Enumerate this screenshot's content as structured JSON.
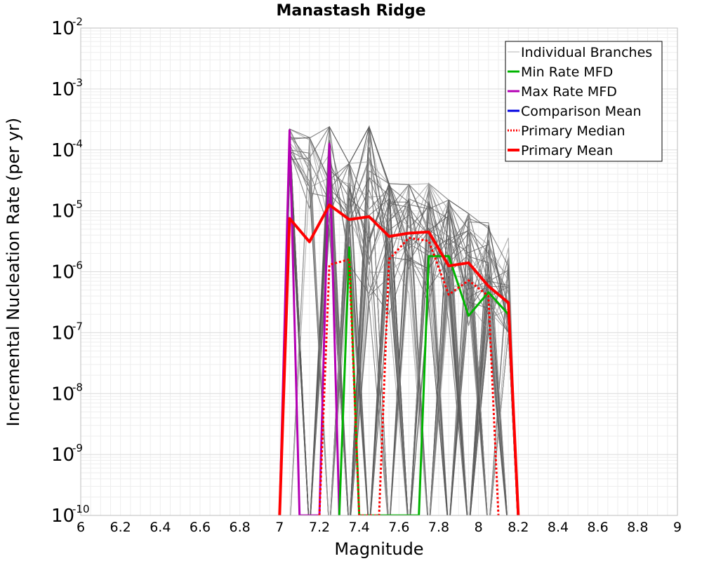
{
  "chart_data": {
    "type": "line",
    "title": "Manastash Ridge",
    "xlabel": "Magnitude",
    "ylabel": "Incremental Nucleation Rate (per yr)",
    "xlim": [
      6,
      9
    ],
    "ylim_log10": [
      -10,
      -2
    ],
    "y_scale": "log",
    "grid": true,
    "x_ticks": [
      "6",
      "6.2",
      "6.4",
      "6.6",
      "6.8",
      "7",
      "7.2",
      "7.4",
      "7.6",
      "7.8",
      "8",
      "8.2",
      "8.4",
      "8.6",
      "8.8",
      "9"
    ],
    "y_ticks": [
      {
        "base": "10",
        "exp": "-10"
      },
      {
        "base": "10",
        "exp": "-9"
      },
      {
        "base": "10",
        "exp": "-8"
      },
      {
        "base": "10",
        "exp": "-7"
      },
      {
        "base": "10",
        "exp": "-6"
      },
      {
        "base": "10",
        "exp": "-5"
      },
      {
        "base": "10",
        "exp": "-4"
      },
      {
        "base": "10",
        "exp": "-3"
      },
      {
        "base": "10",
        "exp": "-2"
      }
    ],
    "legend_position": "top-right",
    "legend": [
      {
        "label": "Individual Branches",
        "color": "#b4b4b4",
        "style": "solid",
        "width": 1
      },
      {
        "label": "Min Rate MFD",
        "color": "#00b400",
        "style": "solid",
        "width": 3
      },
      {
        "label": "Max Rate MFD",
        "color": "#b400b4",
        "style": "solid",
        "width": 3
      },
      {
        "label": "Comparison Mean",
        "color": "#0000e0",
        "style": "solid",
        "width": 3
      },
      {
        "label": " Primary Median",
        "color": "#ff0000",
        "style": "dotted",
        "width": 3
      },
      {
        "label": "Primary Mean",
        "color": "#ff0000",
        "style": "solid",
        "width": 4
      }
    ],
    "series": [
      {
        "name": "Primary Mean",
        "color": "#ff0000",
        "width": 4,
        "dash": "",
        "points": [
          [
            7.0,
            1e-10
          ],
          [
            7.05,
            7.5e-06
          ],
          [
            7.15,
            3.1e-06
          ],
          [
            7.25,
            1.25e-05
          ],
          [
            7.35,
            7.2e-06
          ],
          [
            7.45,
            8e-06
          ],
          [
            7.55,
            3.8e-06
          ],
          [
            7.65,
            4.3e-06
          ],
          [
            7.75,
            4.5e-06
          ],
          [
            7.85,
            1.25e-06
          ],
          [
            7.95,
            1.4e-06
          ],
          [
            8.05,
            5.8e-07
          ],
          [
            8.15,
            3.1e-07
          ],
          [
            8.2,
            1e-10
          ]
        ]
      },
      {
        "name": "Primary Median",
        "color": "#ff0000",
        "width": 3,
        "dash": "3,3",
        "points": [
          [
            7.2,
            1e-10
          ],
          [
            7.25,
            1.3e-06
          ],
          [
            7.35,
            1.6e-06
          ],
          [
            7.4,
            1e-10
          ],
          [
            7.5,
            1e-10
          ],
          [
            7.55,
            1.6e-06
          ],
          [
            7.65,
            3.6e-06
          ],
          [
            7.75,
            3.2e-06
          ],
          [
            7.85,
            4.2e-07
          ],
          [
            7.95,
            7.2e-07
          ],
          [
            8.05,
            4e-07
          ],
          [
            8.1,
            1e-10
          ]
        ]
      },
      {
        "name": "Max Rate MFD",
        "color": "#b400b4",
        "width": 3,
        "dash": "",
        "points": [
          [
            7.0,
            1e-10
          ],
          [
            7.05,
            0.00021
          ],
          [
            7.1,
            1e-10
          ],
          [
            7.2,
            1e-10
          ],
          [
            7.25,
            0.000125
          ],
          [
            7.3,
            1e-10
          ]
        ]
      },
      {
        "name": "Min Rate MFD",
        "color": "#00b400",
        "width": 3,
        "dash": "",
        "points": [
          [
            7.3,
            1e-10
          ],
          [
            7.35,
            2.5e-06
          ],
          [
            7.4,
            1e-10
          ],
          [
            7.7,
            1e-10
          ],
          [
            7.75,
            1.8e-06
          ],
          [
            7.85,
            1.8e-06
          ],
          [
            7.95,
            1.9e-07
          ],
          [
            8.05,
            4.6e-07
          ],
          [
            8.15,
            2e-07
          ]
        ]
      }
    ]
  }
}
